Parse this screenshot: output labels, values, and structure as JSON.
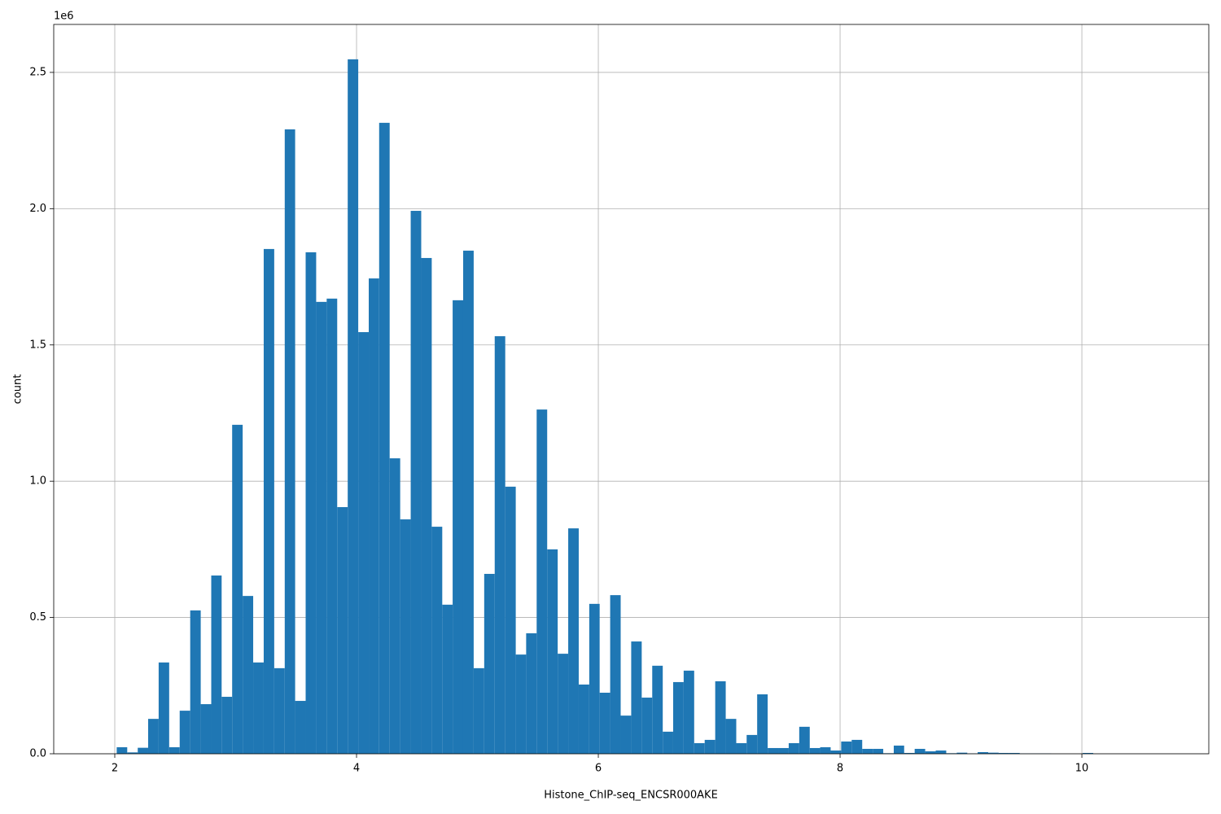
{
  "chart_data": {
    "type": "histogram",
    "xlabel": "Histone_ChIP-seq_ENCSR000AKE",
    "ylabel": "count",
    "y_offset_label": "1e6",
    "color": "#1f77b4",
    "grid": true,
    "bins": [
      1.929,
      2.016,
      2.103,
      2.19,
      2.276,
      2.363,
      2.45,
      2.537,
      2.624,
      2.711,
      2.798,
      2.884,
      2.971,
      3.058,
      3.145,
      3.232,
      3.319,
      3.406,
      3.492,
      3.579,
      3.666,
      3.753,
      3.84,
      3.927,
      4.014,
      4.101,
      4.187,
      4.274,
      4.361,
      4.448,
      4.535,
      4.622,
      4.709,
      4.795,
      4.882,
      4.969,
      5.056,
      5.143,
      5.23,
      5.317,
      5.403,
      5.49,
      5.577,
      5.664,
      5.751,
      5.838,
      5.925,
      6.011,
      6.098,
      6.185,
      6.272,
      6.359,
      6.446,
      6.533,
      6.619,
      6.706,
      6.793,
      6.88,
      6.967,
      7.054,
      7.141,
      7.227,
      7.314,
      7.401,
      7.488,
      7.575,
      7.662,
      7.749,
      7.835,
      7.922,
      8.009,
      8.096,
      8.183,
      8.27,
      8.357,
      8.444,
      8.53,
      8.617,
      8.704,
      8.791,
      8.878,
      8.965,
      9.052,
      9.138,
      9.225,
      9.312,
      9.399,
      9.486,
      9.573,
      9.66,
      9.746,
      9.833,
      9.92,
      10.007,
      10.094,
      10.181,
      10.268,
      10.354,
      10.441,
      10.528,
      10.615
    ],
    "counts": [
      0,
      24000,
      5000,
      22000,
      128000,
      335000,
      24000,
      158000,
      526000,
      182000,
      654000,
      209000,
      1207000,
      579000,
      335000,
      1852000,
      314000,
      2291000,
      194000,
      1840000,
      1658000,
      1670000,
      905000,
      2548000,
      1547000,
      1744000,
      2315000,
      1084000,
      860000,
      1992000,
      1819000,
      833000,
      547000,
      1664000,
      1846000,
      314000,
      660000,
      1532000,
      980000,
      364000,
      442000,
      1263000,
      750000,
      367000,
      827000,
      254000,
      550000,
      224000,
      582000,
      140000,
      412000,
      206000,
      323000,
      81000,
      263000,
      305000,
      39000,
      51000,
      266000,
      128000,
      39000,
      69000,
      218000,
      21000,
      21000,
      39000,
      99000,
      21000,
      24000,
      12000,
      45000,
      51000,
      18000,
      18000,
      2000,
      30000,
      3000,
      18000,
      9000,
      12000,
      2000,
      4000,
      1000,
      6000,
      4000,
      3000,
      3000,
      1000,
      1000,
      1000,
      0,
      0,
      0,
      3000,
      0,
      0,
      0,
      0,
      0,
      0
    ],
    "xlim": [
      1.495,
      11.05
    ],
    "ylim": [
      0,
      2676000
    ],
    "xticks": [
      2,
      4,
      6,
      8,
      10
    ],
    "yticks": [
      {
        "value": 0,
        "label": "0.0"
      },
      {
        "value": 500000,
        "label": "0.5"
      },
      {
        "value": 1000000,
        "label": "1.0"
      },
      {
        "value": 1500000,
        "label": "1.5"
      },
      {
        "value": 2000000,
        "label": "2.0"
      },
      {
        "value": 2500000,
        "label": "2.5"
      }
    ]
  }
}
